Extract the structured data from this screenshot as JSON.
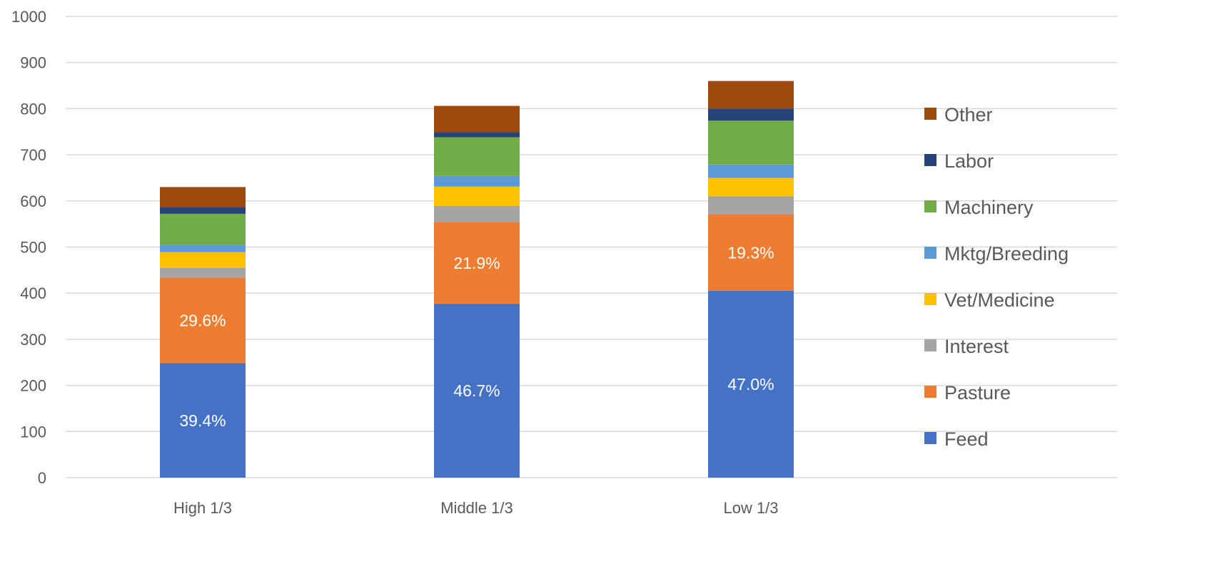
{
  "chart_data": {
    "type": "bar",
    "stacked": true,
    "title": "",
    "xlabel": "",
    "ylabel": "",
    "ylim": [
      0,
      1000
    ],
    "yticks": [
      0,
      100,
      200,
      300,
      400,
      500,
      600,
      700,
      800,
      900,
      1000
    ],
    "grid": true,
    "legend_position": "right",
    "categories": [
      "High 1/3",
      "Middle 1/3",
      "Low 1/3"
    ],
    "series": [
      {
        "name": "Feed",
        "color": "#4472C4",
        "values": [
          248,
          377,
          405
        ],
        "labels": [
          "39.4%",
          "46.7%",
          "47.0%"
        ]
      },
      {
        "name": "Pasture",
        "color": "#ED7D31",
        "values": [
          186,
          177,
          166
        ],
        "labels": [
          "29.6%",
          "21.9%",
          "19.3%"
        ]
      },
      {
        "name": "Interest",
        "color": "#A5A5A5",
        "values": [
          21,
          35,
          39
        ]
      },
      {
        "name": "Vet/Medicine",
        "color": "#FFC000",
        "values": [
          34,
          42,
          40
        ]
      },
      {
        "name": "Mktg/Breeding",
        "color": "#5B9BD5",
        "values": [
          15,
          23,
          29
        ]
      },
      {
        "name": "Machinery",
        "color": "#70AD47",
        "values": [
          68,
          84,
          95
        ]
      },
      {
        "name": "Labor",
        "color": "#264478",
        "values": [
          15,
          11,
          26
        ]
      },
      {
        "name": "Other",
        "color": "#9E480E",
        "values": [
          43,
          57,
          60
        ]
      }
    ]
  }
}
